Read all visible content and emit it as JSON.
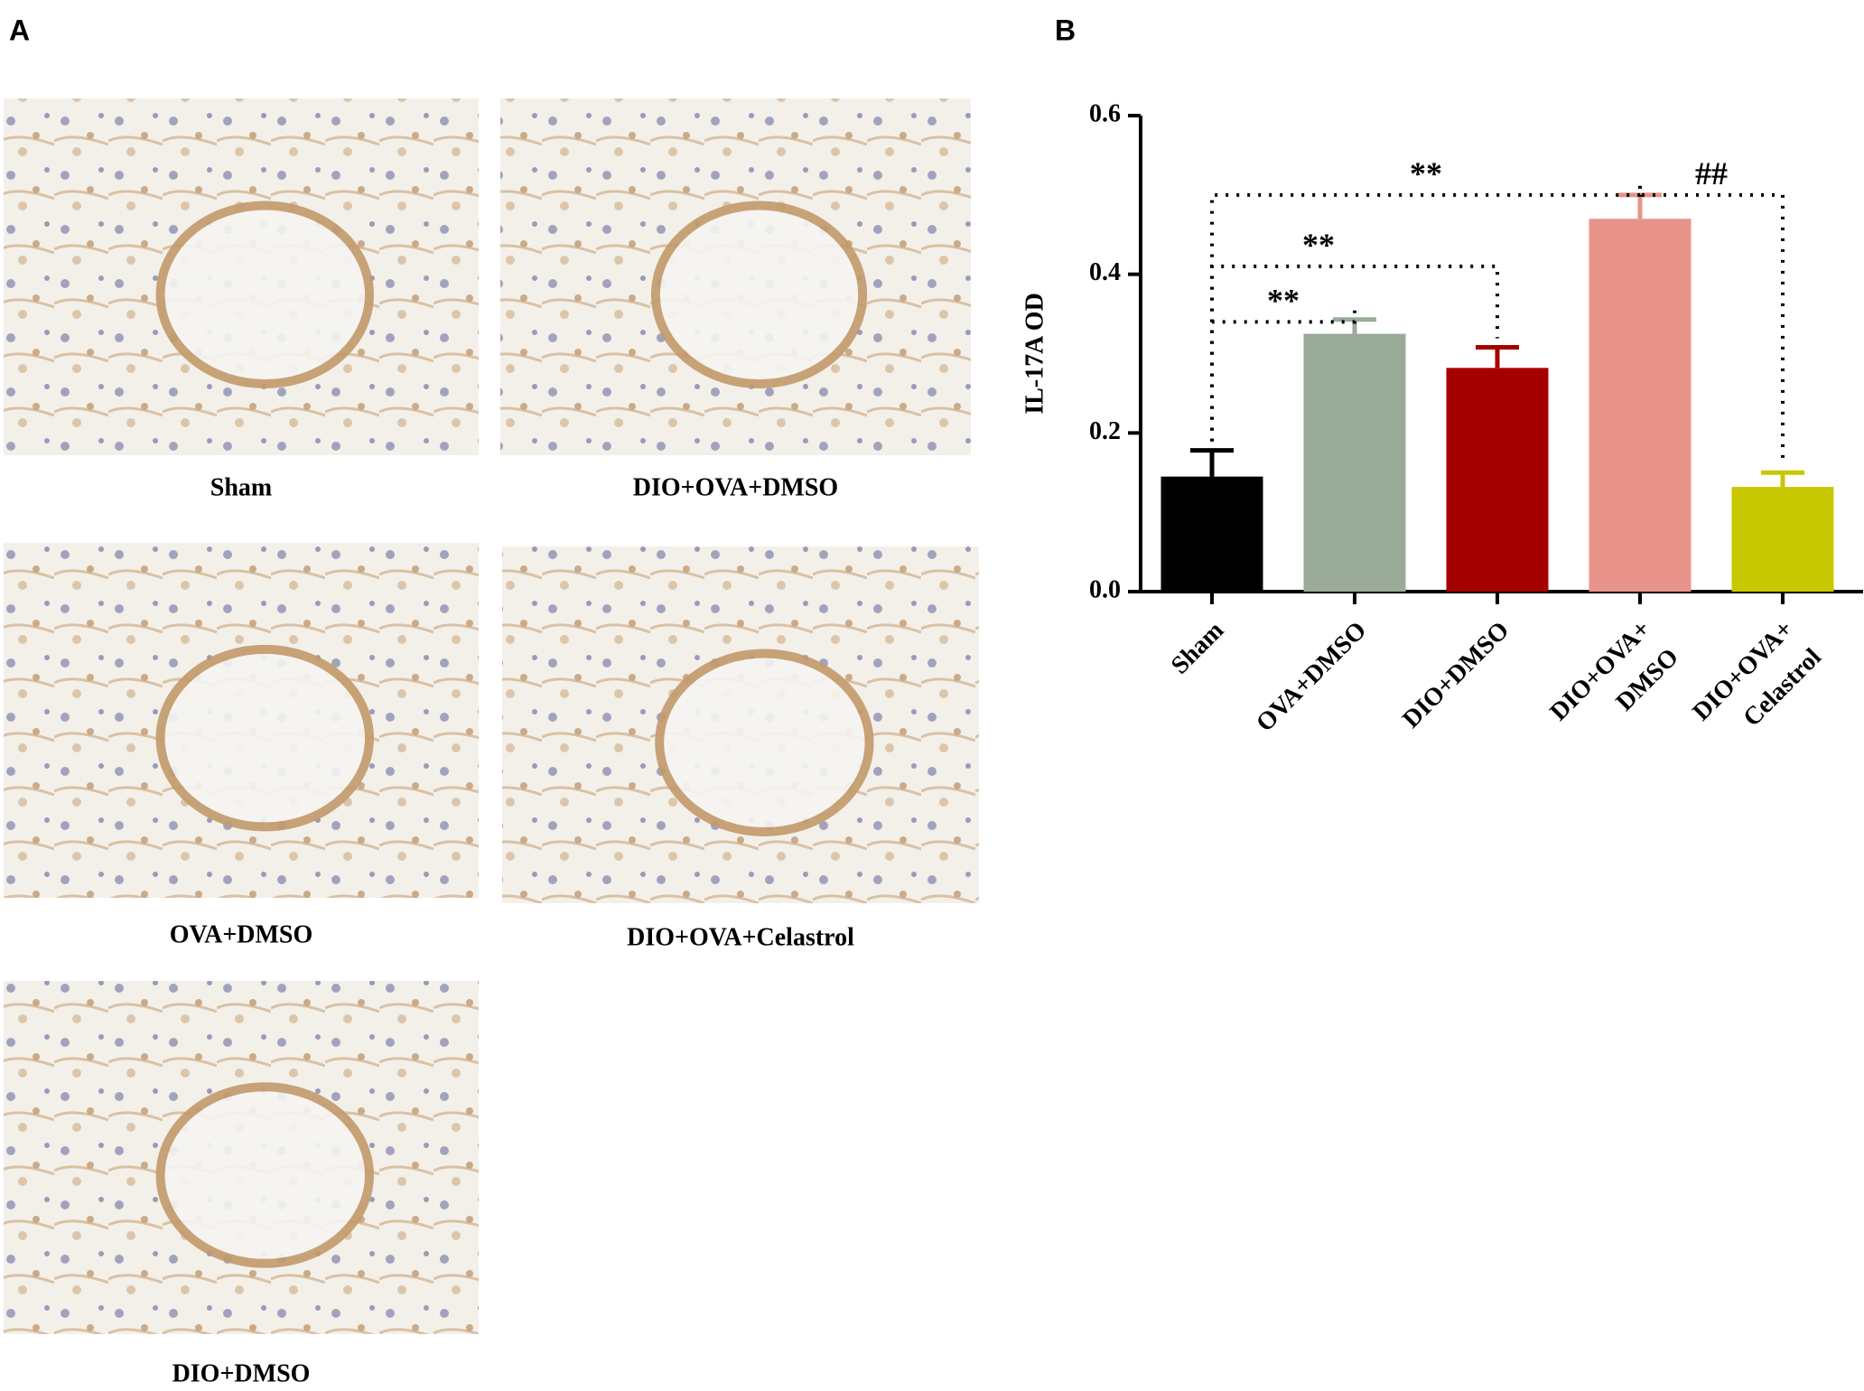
{
  "panels": {
    "A": {
      "label": "A",
      "images": [
        {
          "caption": "Sham"
        },
        {
          "caption": "DIO+OVA+DMSO"
        },
        {
          "caption": "OVA+DMSO"
        },
        {
          "caption": "DIO+OVA+Celastrol"
        },
        {
          "caption": "DIO+DMSO"
        }
      ]
    },
    "B": {
      "label": "B"
    }
  },
  "chart_data": {
    "type": "bar",
    "y_label": "IL-17A OD",
    "categories": [
      "Sham",
      "OVA+DMSO",
      "DIO+DMSO",
      "DIO+OVA+\nDMSO",
      "DIO+OVA+\nCelastrol"
    ],
    "values": [
      0.145,
      0.325,
      0.282,
      0.47,
      0.132
    ],
    "errors": [
      0.033,
      0.018,
      0.026,
      0.03,
      0.018
    ],
    "colors": [
      "#000000",
      "#9aab9a",
      "#a50000",
      "#e8948a",
      "#c8c800"
    ],
    "ylim": [
      0,
      0.6
    ],
    "yticks": [
      {
        "value": 0,
        "label": "0.0"
      },
      {
        "value": 0.2,
        "label": "0.2"
      },
      {
        "value": 0.4,
        "label": "0.4"
      },
      {
        "value": 0.6,
        "label": "0.6"
      }
    ],
    "annotations": [
      {
        "text": "**",
        "from": 0,
        "to": 1
      },
      {
        "text": "**",
        "from": 0,
        "to": 2
      },
      {
        "text": "**",
        "from": 0,
        "to": 3
      },
      {
        "text": "##",
        "from": 3,
        "to": 4
      }
    ]
  }
}
